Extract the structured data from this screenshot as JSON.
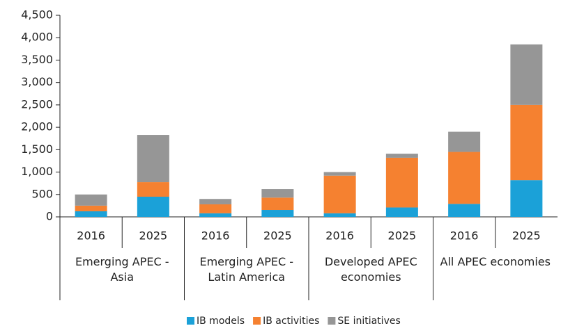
{
  "chart_data": {
    "type": "stacked-bar",
    "categories": [
      "2016",
      "2025",
      "2016",
      "2025",
      "2016",
      "2025",
      "2016",
      "2025"
    ],
    "groups": [
      "Emerging APEC - Asia",
      "Emerging APEC - Latin America",
      "Developed APEC economies",
      "All APEC economies"
    ],
    "series": [
      {
        "name": "IB models",
        "color": "#1ba1d8",
        "values": [
          125,
          450,
          80,
          155,
          80,
          210,
          290,
          820
        ]
      },
      {
        "name": "IB activities",
        "color": "#f58130",
        "values": [
          125,
          325,
          200,
          275,
          840,
          1110,
          1160,
          1680
        ]
      },
      {
        "name": "SE initiatives",
        "color": "#969696",
        "values": [
          250,
          1055,
          120,
          190,
          80,
          90,
          450,
          1350
        ]
      }
    ],
    "ylim": [
      0,
      4500
    ],
    "yticks": [
      0,
      500,
      {
        "value": 1000,
        "label": "1,000"
      },
      {
        "value": 1500,
        "label": "1,500"
      },
      {
        "value": 2000,
        "label": "2,000"
      },
      {
        "value": 2500,
        "label": "2,500"
      },
      {
        "value": 3000,
        "label": "3,000"
      },
      {
        "value": 3500,
        "label": "3,500"
      },
      {
        "value": 4000,
        "label": "4,000"
      },
      {
        "value": 4500,
        "label": "4,500"
      }
    ],
    "legend": "bottom"
  }
}
